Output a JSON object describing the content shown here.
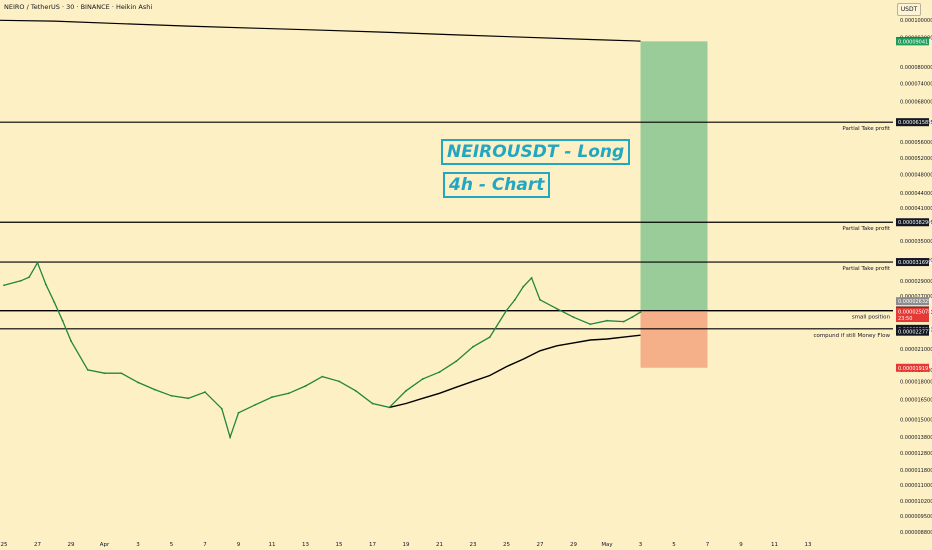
{
  "header": {
    "title": "NEIRO / TetherUS · 30 · BINANCE · Heikin Ashi"
  },
  "toolbar": {
    "currency": "USDT"
  },
  "annotations": {
    "title_line": "NEIROUSDT - Long",
    "subtitle_line": "4h - Chart"
  },
  "colors": {
    "background": "#fdf0c4",
    "profit_zone": "#99cc99",
    "loss_zone": "#f6b089",
    "candle_green": "#22863a",
    "annotation": "#22a7c3",
    "tag_green": "#1f9d5a",
    "tag_red": "#e53935",
    "tag_dark": "#131722",
    "tag_gray": "#8c8c8c"
  },
  "chart_data": {
    "type": "line",
    "scale": "log",
    "ylim": [
      8.8e-06,
      0.00011
    ],
    "x_tick_labels": [
      "25",
      "27",
      "29",
      "Apr",
      "3",
      "5",
      "7",
      "9",
      "11",
      "13",
      "15",
      "17",
      "19",
      "21",
      "23",
      "25",
      "27",
      "29",
      "May",
      "3",
      "5",
      "7",
      "9",
      "11",
      "13"
    ],
    "y_tick_labels": [
      0.0001,
      9.2e-05,
      8e-05,
      7.4e-05,
      6.8e-05,
      6.1585e-05,
      5.6e-05,
      5.2e-05,
      4.8e-05,
      4.4e-05,
      4.1e-05,
      3.8296e-05,
      3.5e-05,
      3.2e-05,
      2.9e-05,
      2.7e-05,
      2.5e-05,
      2.3e-05,
      2.1e-05,
      1.9e-05,
      1.8e-05,
      1.65e-05,
      1.5e-05,
      1.38e-05,
      1.28e-05,
      1.18e-05,
      1.1e-05,
      1.02e-05,
      9.5e-06,
      8.8e-06
    ],
    "price_series": {
      "x": [
        "03-25",
        "03-26",
        "03-26 12:00",
        "03-27",
        "03-27 12:00",
        "03-28",
        "03-28 12:00",
        "03-29",
        "03-30",
        "03-31",
        "04-01",
        "04-02",
        "04-03",
        "04-04",
        "04-05",
        "04-06",
        "04-07",
        "04-07 12:00",
        "04-08",
        "04-09",
        "04-10",
        "04-11",
        "04-12",
        "04-13",
        "04-14",
        "04-15",
        "04-16",
        "04-17",
        "04-18",
        "04-19",
        "04-20",
        "04-21",
        "04-22",
        "04-23",
        "04-24",
        "04-24 12:00",
        "04-25",
        "04-25 12:00",
        "04-26",
        "04-27",
        "04-28",
        "04-29",
        "04-30",
        "05-01",
        "05-01 12:00",
        "05-02"
      ],
      "y": [
        2.84e-05,
        2.9e-05,
        2.95e-05,
        3.16e-05,
        2.85e-05,
        2.62e-05,
        2.4e-05,
        2.18e-05,
        1.9e-05,
        1.87e-05,
        1.87e-05,
        1.79e-05,
        1.73e-05,
        1.68e-05,
        1.66e-05,
        1.71e-05,
        1.58e-05,
        1.38e-05,
        1.55e-05,
        1.61e-05,
        1.67e-05,
        1.7e-05,
        1.76e-05,
        1.84e-05,
        1.8e-05,
        1.72e-05,
        1.62e-05,
        1.59e-05,
        1.72e-05,
        1.82e-05,
        1.88e-05,
        1.98e-05,
        2.12e-05,
        2.22e-05,
        2.52e-05,
        2.65e-05,
        2.82e-05,
        2.94e-05,
        2.65e-05,
        2.54e-05,
        2.44e-05,
        2.36e-05,
        2.4e-05,
        2.39e-05,
        2.44e-05,
        2.5e-05
      ]
    },
    "ma_upper": {
      "x": [
        "03-24",
        "03-28",
        "04-01",
        "04-05",
        "04-09",
        "04-13",
        "04-17",
        "04-21",
        "04-25",
        "04-29",
        "05-02"
      ],
      "y": [
        0.0001,
        9.95e-05,
        9.83e-05,
        9.72e-05,
        9.62e-05,
        9.53e-05,
        9.43e-05,
        9.32e-05,
        9.22e-05,
        9.12e-05,
        9.05e-05
      ]
    },
    "ma_lower": {
      "x": [
        "04-17",
        "04-18",
        "04-19",
        "04-20",
        "04-21",
        "04-22",
        "04-23",
        "04-24",
        "04-25",
        "04-26",
        "04-27",
        "04-28",
        "04-29",
        "04-30",
        "05-01",
        "05-02"
      ],
      "y": [
        1.59e-05,
        1.62e-05,
        1.66e-05,
        1.7e-05,
        1.75e-05,
        1.8e-05,
        1.85e-05,
        1.93e-05,
        2e-05,
        2.08e-05,
        2.13e-05,
        2.16e-05,
        2.19e-05,
        2.2e-05,
        2.22e-05,
        2.24e-05
      ]
    },
    "levels": [
      {
        "label": "Partial Take profit",
        "value": 6.1585e-05
      },
      {
        "label": "Partial Take profit",
        "value": 3.8296e-05
      },
      {
        "label": "Partial Take profit",
        "value": 3.1699e-05
      },
      {
        "label": "small position",
        "value": 2.5171e-05
      },
      {
        "label": "compund if still Money Flow",
        "value": 2.309e-05
      }
    ],
    "position": {
      "entry": 2.5078e-05,
      "target": 9.041e-05,
      "stop": 1.919e-05,
      "x_start": "05-02",
      "x_end": "05-06"
    },
    "price_tags": [
      {
        "value": 9.051e-05,
        "text": "0.000090510",
        "style": "dark"
      },
      {
        "value": 9.041e-05,
        "text": "0.00009041",
        "style": "green"
      },
      {
        "value": 6.1585e-05,
        "text": "0.000061585",
        "style": "dark"
      },
      {
        "value": 3.8296e-05,
        "text": "0.000038296",
        "style": "dark"
      },
      {
        "value": 3.1699e-05,
        "text": "0.000031699",
        "style": "dark"
      },
      {
        "value": 2.6329e-05,
        "text": "0.000026329",
        "style": "gray"
      },
      {
        "value": 2.5195e-05,
        "text": "0.000025195",
        "style": "red"
      },
      {
        "value": 2.5171e-05,
        "text": "0.000025171",
        "style": "dark"
      },
      {
        "value": 2.5078e-05,
        "text": "0.000025078",
        "style": "red"
      },
      {
        "value": 2.43e-05,
        "text": "23:50",
        "style": "red"
      },
      {
        "value": 2.309e-05,
        "text": "0.000023090",
        "style": "dark"
      },
      {
        "value": 2.2777e-05,
        "text": "0.000022777",
        "style": "dark"
      },
      {
        "value": 1.919e-05,
        "text": "0.00001919",
        "style": "red"
      }
    ]
  }
}
